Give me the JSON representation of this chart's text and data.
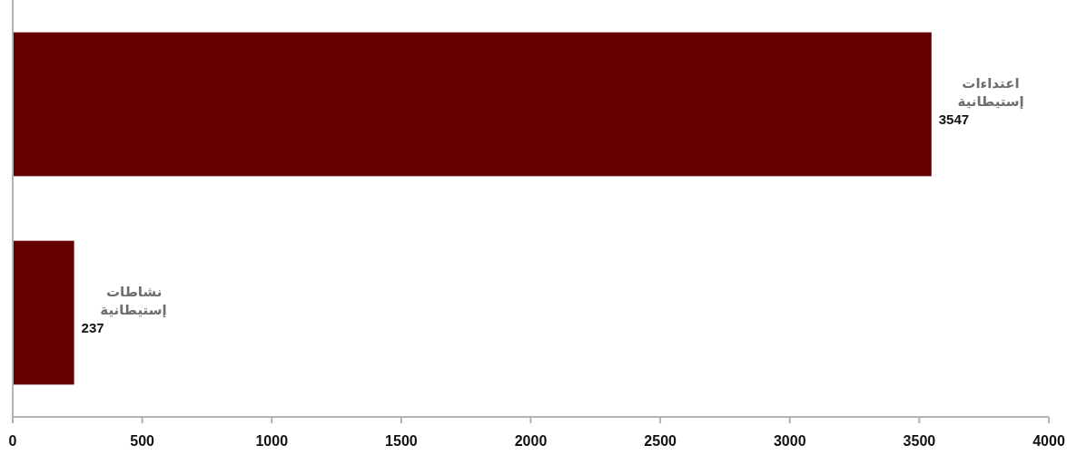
{
  "chart_data": {
    "type": "bar",
    "orientation": "horizontal",
    "categories": [
      "اعتداءات إستيطانية",
      "نشاطات إستيطانية"
    ],
    "values": [
      3547,
      237
    ],
    "color": "#660000",
    "xlim": [
      0,
      4000
    ],
    "xticks": [
      0,
      500,
      1000,
      1500,
      2000,
      2500,
      3000,
      3500,
      4000
    ],
    "data_labels": true,
    "grid": false,
    "legend": false,
    "tick_labels": "x"
  }
}
